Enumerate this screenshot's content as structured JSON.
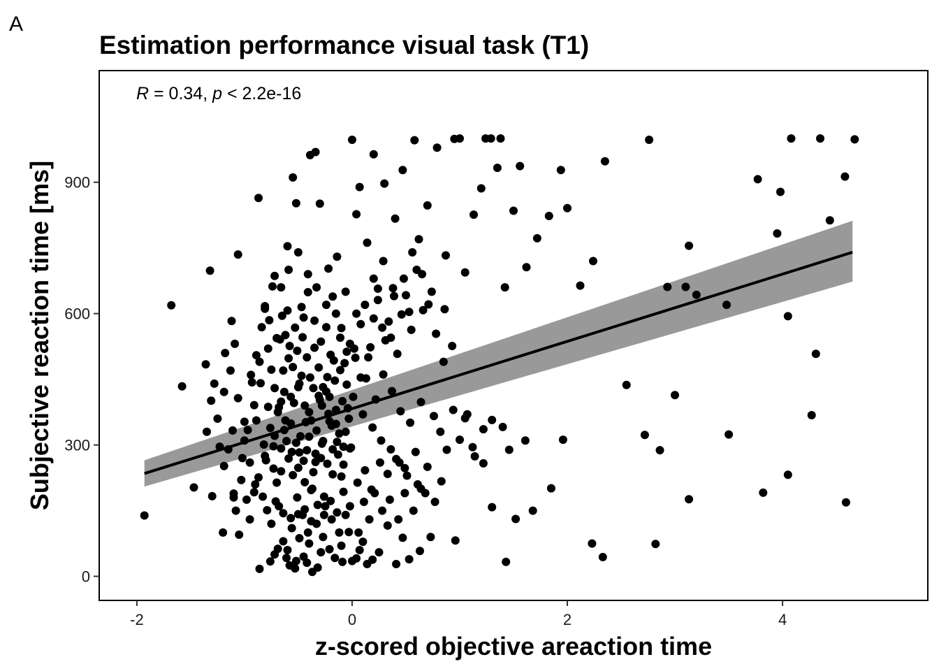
{
  "panel_label": "A",
  "chart_data": {
    "type": "scatter",
    "title": "Estimation performance visual task (T1)",
    "xlabel": "z-scored objective areaction time",
    "ylabel": "Subjective reaction time [ms]",
    "xlim": [
      -2.35,
      5.35
    ],
    "ylim": [
      -55,
      1155
    ],
    "xticks": [
      -2,
      0,
      2,
      4
    ],
    "yticks": [
      0,
      300,
      600,
      900
    ],
    "xtick_labels": [
      "-2",
      "0",
      "2",
      "4"
    ],
    "ytick_labels": [
      "0",
      "300",
      "600",
      "900"
    ],
    "grid": false,
    "annotation": {
      "r_symbol": "R",
      "r_value": " = 0.34, ",
      "p_symbol": "p",
      "p_value": " < 2.2e-16"
    },
    "fit": {
      "slope": 76.8,
      "intercept": 383,
      "x_range": [
        -1.93,
        4.65
      ],
      "ci_low": [
        205,
        673
      ],
      "ci_high": [
        265,
        812
      ],
      "line_color": "#000000",
      "band_color": "#999999"
    },
    "point_color": "#000000",
    "points_text": "-1.93,139 -1.68,619 -1.58,434 -1.47,203 -1.32,698 -1.3,183 -1.31,401 -1.23,296 -1.12,583 -1.11,333 -1.09,531 -1.1,189 -1.06,735 -1.0,310 -0.91,192 -0.87,864 -0.81,611 -0.72,686 -0.66,399 -0.6,754 -0.55,911 -0.52,852 -0.45,591 -0.39,962 -0.34,969 -0.3,851 -0.22,703 -0.18,639 -0.14,730 -0.1,567 -0.05,513 0.0,997 0.04,827 0.07,889 0.14,762 0.2,964 0.24,657 0.3,897 0.36,545 0.4,817 0.47,928 0.53,604 0.58,996 0.62,770 0.7,847 0.79,979 0.87,733 0.95,999 1.0,1000 1.05,694 1.13,826 1.2,886 1.24,1000 1.29,1000 1.35,933 1.38,1000 1.42,660 1.5,835 1.56,937 1.62,706 1.72,772 1.83,823 1.94,928 2.0,841 2.12,664 2.24,720 2.35,948 2.55,437 2.72,323 2.76,997 2.93,661 3.0,414 3.1,661 3.13,755 3.2,643 3.5,324 3.77,907 3.95,783 3.98,878 4.05,594 4.08,1000 4.27,368 4.31,508 4.35,1000 4.44,813 4.58,913 4.59,169 4.67,998 -1.36,484 -1.19,252 -1.05,95 -0.95,130 -0.86,17 -0.76,34 -0.69,63 -0.61,42 -0.53,18 -0.49,87 -0.42,31 -0.37,10 -0.29,55 -0.21,62 -0.16,42 -0.09,33 -0.03,101 0.04,41 0.1,79 0.19,38 0.25,55 0.33,116 0.41,28 0.47,88 0.53,39 0.63,58 0.73,90 0.83,217 0.96,82 1.05,361 1.12,295 1.22,258 1.3,158 1.43,33 1.52,131 1.61,310 1.68,150 1.85,201 1.96,312 2.23,75 2.33,44 2.82,74 2.86,288 3.13,176 3.48,620 3.82,191 4.05,232 -0.82,301 -0.59,269 -0.38,356 -0.55,231 -0.28,303 -0.47,458 -0.63,334 -0.22,371 -0.73,246 -0.34,280 -0.12,326 -0.68,386 -0.44,215 -0.18,233 -0.51,515 -0.02,292 -0.85,441 -0.31,412 -0.59,498 -0.26,182 -0.66,292 -0.4,319 -0.08,255 -0.49,283 -0.21,354 -0.78,387 -0.36,238 -0.04,384 -0.57,349 -0.14,307 -0.72,321 -0.45,264 -0.24,422 -0.61,309 -0.33,333 -0.01,294 -0.8,265 -0.54,396 -0.29,270 -0.69,375 -0.43,352 -0.18,290 -0.63,421 -0.38,197 -0.1,228 -0.76,339 -0.5,248 -0.27,309 -0.66,240 -0.4,375 -0.15,348 -0.56,284 -0.3,403 -0.06,330 -0.73,297 -0.48,320 -0.23,257 -0.62,356 -0.34,261 -0.08,296 -0.89,356 -0.52,305 -0.19,344 -0.7,214 -0.42,288 -0.13,278 -1.02,270 -0.97,334 -0.91,391 -0.87,226 -0.83,182 -0.79,151 -0.75,472 -0.71,171 -0.67,541 -0.64,144 -0.6,607 -0.57,133 -0.53,568 -0.5,142 -0.47,615 -0.44,153 -0.41,649 -0.38,126 -0.35,584 -0.32,163 -0.29,536 -0.26,140 -0.23,455 -0.2,172 -0.17,493 -0.14,146 -0.11,471 -0.08,193 -0.05,438 -0.02,160 0.02,520 0.05,214 0.08,454 0.12,242 0.15,500 0.18,198 0.22,404 0.26,260 0.29,461 0.33,234 0.37,423 0.41,268 0.45,377 0.49,247 0.54,351 0.59,284 0.64,398 0.7,250 0.76,366 0.82,330 0.88,289 0.94,380 1.0,312 1.07,370 1.14,274 1.22,336 1.3,357 1.4,341 1.46,289 -1.19,421 -1.13,470 -1.06,407 -1.0,353 -0.93,443 -0.89,505 -0.84,569 -0.81,617 -0.77,585 -0.74,662 -0.7,544 -0.65,595 -0.62,551 -0.58,526 -0.55,478 -0.5,432 -0.46,546 -0.42,500 -0.39,454 -0.35,522 -0.31,477 -0.27,432 -0.24,569 -0.2,506 -0.16,447 -0.11,545 -0.07,487 -0.02,531 0.03,499 0.08,576 0.13,452 0.17,523 0.2,589 0.24,631 0.28,568 0.31,539 0.34,582 0.38,658 0.42,508 0.46,598 0.5,642 0.55,563 0.6,700 0.66,608 0.71,621 0.78,554 0.85,490 0.93,526 -0.6,60 -0.58,25 -0.45,45 -0.4,75 -0.32,20 -0.27,90 -0.1,70 0.0,35 0.07,60 0.14,28 -0.72,50 -0.64,80 -0.52,35 -1.2,100 -1.08,150 -0.98,175 -0.9,210 -0.81,275 -0.75,120 -0.68,160 -0.56,110 -0.51,180 -0.46,140 -0.41,100 -0.37,200 -0.33,120 -0.25,160 -0.19,130 -0.12,100 -0.06,140 0.06,100 0.11,170 0.16,130 0.21,190 0.28,150 0.35,175 0.43,130 0.49,190 0.57,150 0.64,200 -0.95,260 -1.03,220 -1.1,180 -1.15,290 -1.25,360 -1.35,330 -1.28,440 -1.18,510 -0.94,460 -0.86,490 -0.78,520 -0.72,430 -0.64,470 -0.57,410 -0.49,440 -0.44,390 -0.36,430 -0.28,390 -0.21,410 -0.15,380 -0.09,400 -0.03,360 0.01,410 0.1,370 0.19,340 0.27,310 0.36,290 0.44,260 0.51,230 0.61,210 0.68,190 0.77,170 -0.66,660 -0.59,700 -0.5,740 -0.41,690 -0.33,660 -0.24,620 -0.15,600 -0.06,650 0.04,600 0.12,620 0.2,680 0.29,720 0.39,640 0.48,680 0.56,740 0.65,690 0.74,650 0.86,610"
  }
}
